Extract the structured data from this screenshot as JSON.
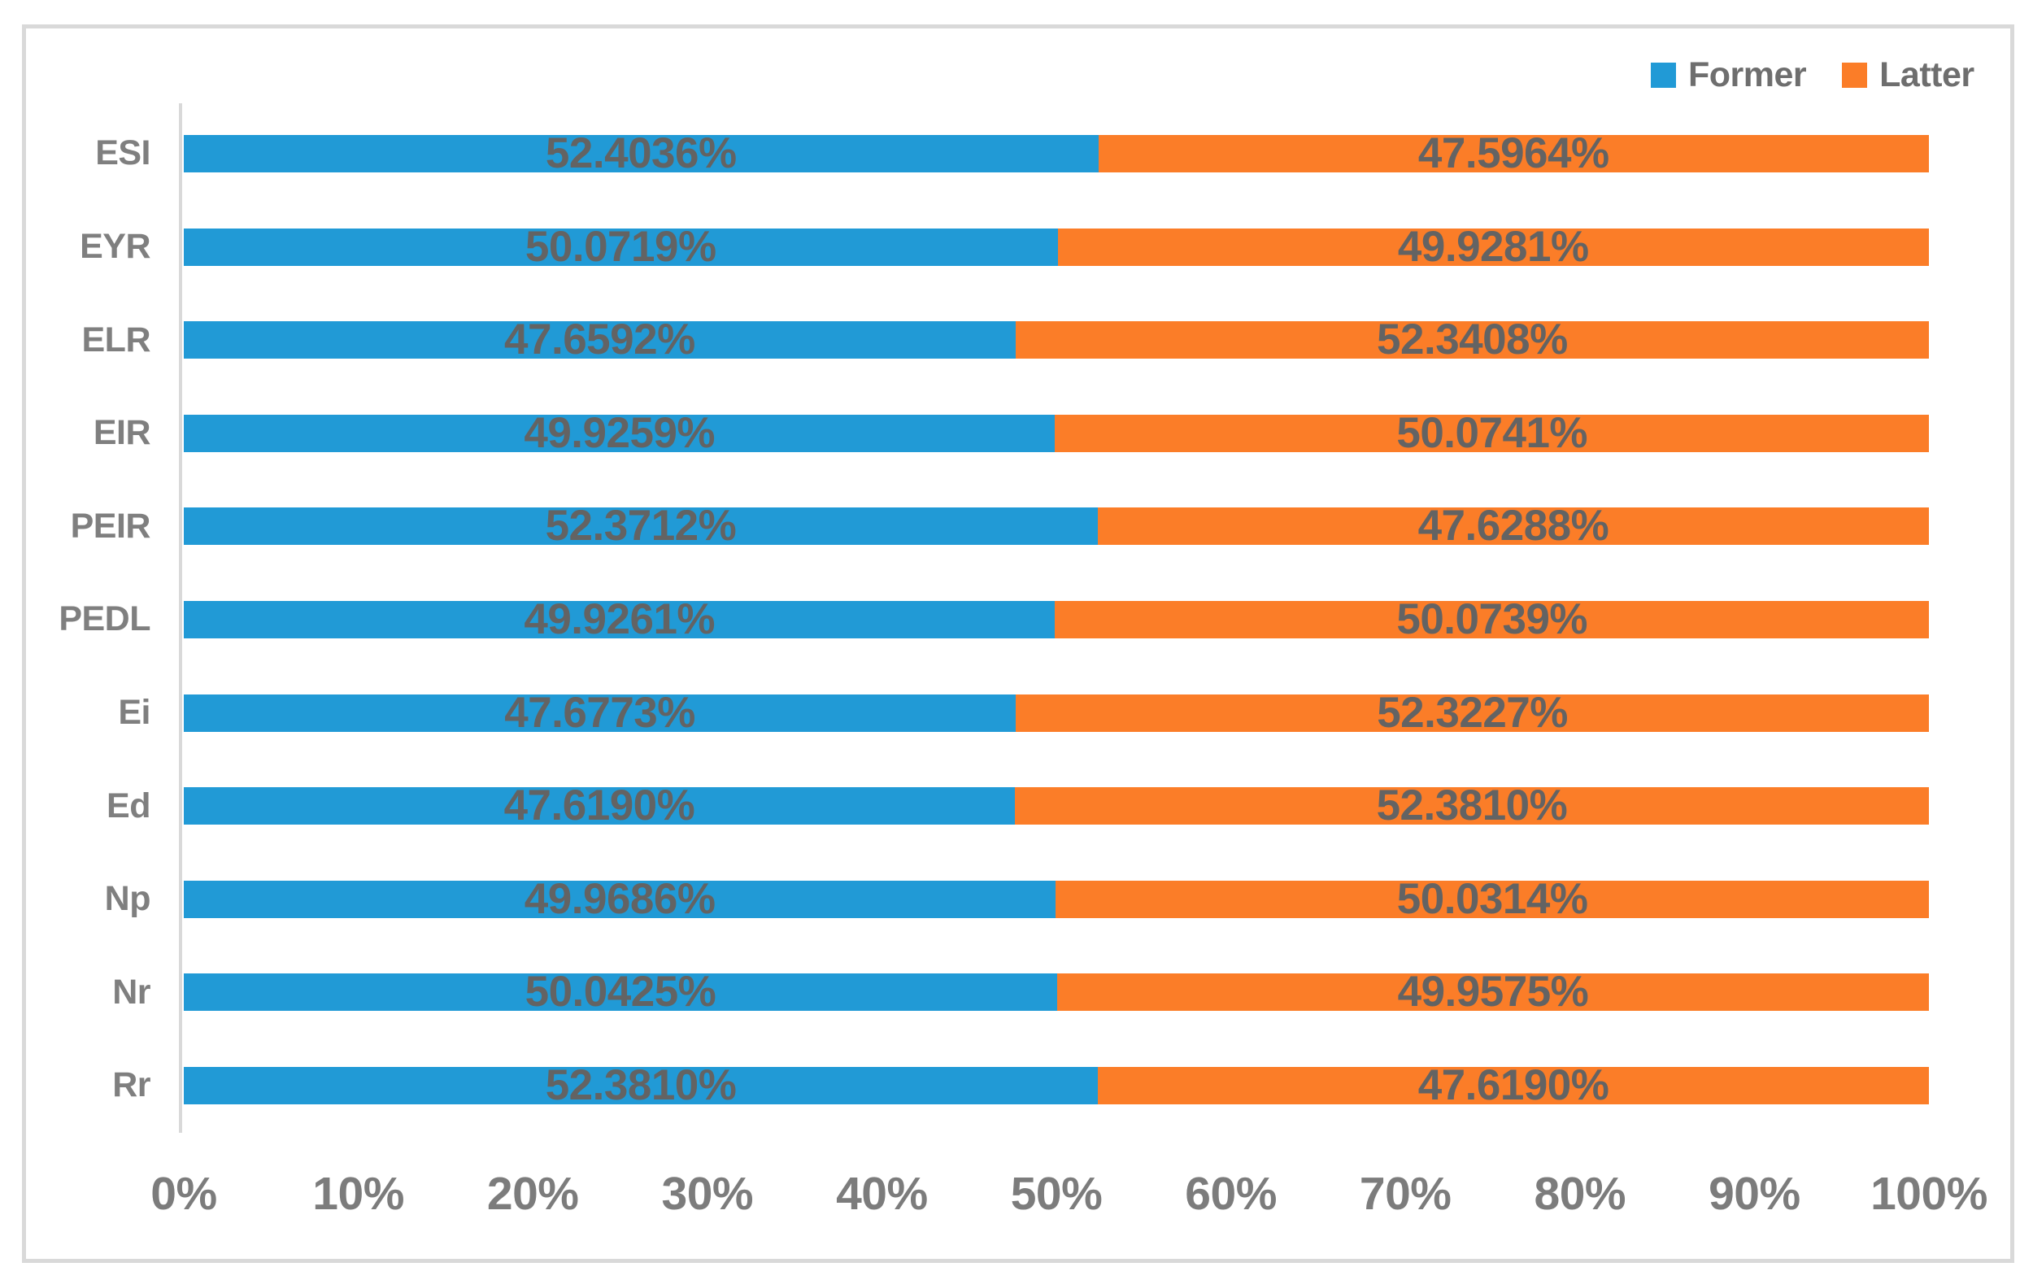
{
  "colors": {
    "former": "#219ad6",
    "latter": "#fb7d28",
    "axis_line": "#d9d9d9",
    "frame_border": "#d9d9d9",
    "value_label": "#636363",
    "category_label": "#7f7f7f",
    "tick_label": "#7c7c7c",
    "legend_label": "#6e6e6e"
  },
  "legend": {
    "former_label": "Former",
    "latter_label": "Latter"
  },
  "chart_data": {
    "type": "bar",
    "subtype": "horizontal-stacked-100pct",
    "title": "",
    "xlabel": "",
    "ylabel": "",
    "grid": false,
    "legend_position": "top-right",
    "xlim": [
      0,
      100
    ],
    "x_ticks": [
      "0%",
      "10%",
      "20%",
      "30%",
      "40%",
      "50%",
      "60%",
      "70%",
      "80%",
      "90%",
      "100%"
    ],
    "x_tick_values": [
      0,
      10,
      20,
      30,
      40,
      50,
      60,
      70,
      80,
      90,
      100
    ],
    "categories": [
      "ESI",
      "EYR",
      "ELR",
      "EIR",
      "PEIR",
      "PEDL",
      "Ei",
      "Ed",
      "Np",
      "Nr",
      "Rr"
    ],
    "series": [
      {
        "name": "Former",
        "color": "#219ad6",
        "values": [
          52.4036,
          50.0719,
          47.6592,
          49.9259,
          52.3712,
          49.9261,
          47.6773,
          47.619,
          49.9686,
          50.0425,
          52.381
        ],
        "labels": [
          "52.4036%",
          "50.0719%",
          "47.6592%",
          "49.9259%",
          "52.3712%",
          "49.9261%",
          "47.6773%",
          "47.6190%",
          "49.9686%",
          "50.0425%",
          "52.3810%"
        ]
      },
      {
        "name": "Latter",
        "color": "#fb7d28",
        "values": [
          47.5964,
          49.9281,
          52.3408,
          50.0741,
          47.6288,
          50.0739,
          52.3227,
          52.381,
          50.0314,
          49.9575,
          47.619
        ],
        "labels": [
          "47.5964%",
          "49.9281%",
          "52.3408%",
          "50.0741%",
          "47.6288%",
          "50.0739%",
          "52.3227%",
          "52.3810%",
          "50.0314%",
          "49.9575%",
          "47.6190%"
        ]
      }
    ]
  }
}
